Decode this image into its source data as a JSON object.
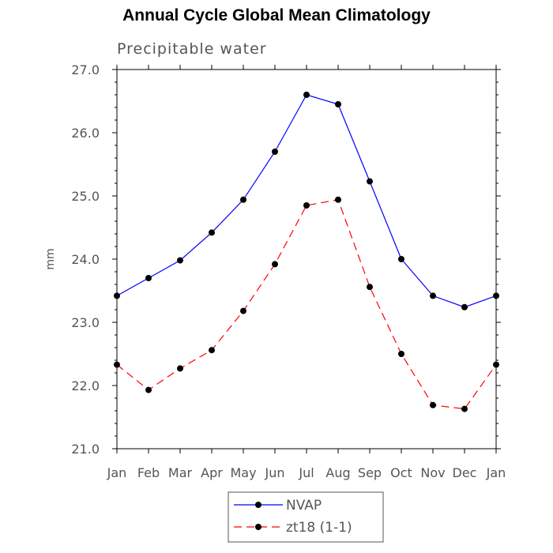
{
  "chart_data": {
    "type": "line",
    "title": "Annual Cycle Global Mean Climatology",
    "subtitle": "Precipitable water",
    "xlabel": "",
    "ylabel": "mm",
    "categories": [
      "Jan",
      "Feb",
      "Mar",
      "Apr",
      "May",
      "Jun",
      "Jul",
      "Aug",
      "Sep",
      "Oct",
      "Nov",
      "Dec",
      "Jan"
    ],
    "ylim": [
      21.0,
      27.0
    ],
    "yticks": [
      "21.0",
      "22.0",
      "23.0",
      "24.0",
      "25.0",
      "26.0",
      "27.0"
    ],
    "grid": false,
    "legend_position": "bottom-center",
    "series": [
      {
        "name": "NVAP",
        "color": "#0000ff",
        "dash": "solid",
        "values": [
          23.42,
          23.7,
          23.98,
          24.42,
          24.94,
          25.7,
          26.6,
          26.45,
          25.23,
          24.0,
          23.42,
          23.24,
          23.42
        ]
      },
      {
        "name": "zt18 (1-1)",
        "color": "#ff0000",
        "dash": "dashed",
        "values": [
          22.33,
          21.93,
          22.27,
          22.56,
          23.18,
          23.92,
          24.85,
          24.94,
          23.56,
          22.5,
          21.69,
          21.63,
          22.33
        ]
      }
    ]
  }
}
